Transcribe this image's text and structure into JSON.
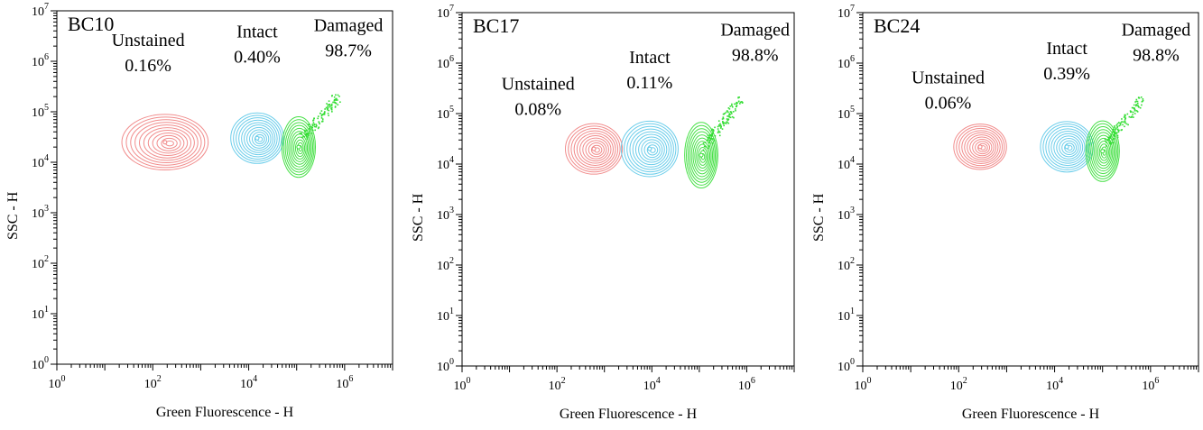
{
  "chart_data": [
    {
      "type": "scatter",
      "title": "BC10",
      "xlabel": "Green Fluorescence - H",
      "ylabel": "SSC - H",
      "xscale": "log",
      "yscale": "log",
      "xlim": [
        1,
        10000000.0
      ],
      "ylim": [
        1,
        10000000.0
      ],
      "x_ticks": [
        1,
        100,
        10000,
        1000000
      ],
      "x_tick_labels": [
        {
          "base": "10",
          "exp": "0"
        },
        {
          "base": "10",
          "exp": "2"
        },
        {
          "base": "10",
          "exp": "4"
        },
        {
          "base": "10",
          "exp": "6"
        }
      ],
      "y_ticks": [
        1,
        10,
        100,
        1000,
        10000,
        100000,
        1000000,
        10000000
      ],
      "y_tick_labels": [
        {
          "base": "10",
          "exp": "0"
        },
        {
          "base": "10",
          "exp": "1"
        },
        {
          "base": "10",
          "exp": "2"
        },
        {
          "base": "10",
          "exp": "3"
        },
        {
          "base": "10",
          "exp": "4"
        },
        {
          "base": "10",
          "exp": "5"
        },
        {
          "base": "10",
          "exp": "6"
        },
        {
          "base": "10",
          "exp": "7"
        }
      ],
      "grid": false,
      "series": [
        {
          "name": "Unstained",
          "color": "#f08080",
          "percent": "0.16%",
          "center": [
            180,
            25000
          ],
          "log_spread": [
            0.9,
            0.55
          ],
          "label_at": [
            80,
            2000000
          ]
        },
        {
          "name": "Intact",
          "color": "#5bc8e8",
          "percent": "0.40%",
          "center": [
            15000,
            30000
          ],
          "log_spread": [
            0.55,
            0.5
          ],
          "label_at": [
            15000,
            3000000
          ]
        },
        {
          "name": "Damaged",
          "color": "#33dd33",
          "percent": "98.7%",
          "center": [
            110000,
            20000
          ],
          "log_spread": [
            0.35,
            0.6
          ],
          "label_at": [
            1200000,
            4000000
          ]
        }
      ]
    },
    {
      "type": "scatter",
      "title": "BC17",
      "xlabel": "Green Fluorescence - H",
      "ylabel": "SSC - H",
      "xscale": "log",
      "yscale": "log",
      "xlim": [
        1,
        10000000.0
      ],
      "ylim": [
        1,
        10000000.0
      ],
      "x_ticks": [
        1,
        100,
        10000,
        1000000
      ],
      "x_tick_labels": [
        {
          "base": "10",
          "exp": "0"
        },
        {
          "base": "10",
          "exp": "2"
        },
        {
          "base": "10",
          "exp": "4"
        },
        {
          "base": "10",
          "exp": "6"
        }
      ],
      "y_ticks": [
        1,
        10,
        100,
        1000,
        10000,
        100000,
        1000000,
        10000000
      ],
      "y_tick_labels": [
        {
          "base": "10",
          "exp": "0"
        },
        {
          "base": "10",
          "exp": "1"
        },
        {
          "base": "10",
          "exp": "2"
        },
        {
          "base": "10",
          "exp": "3"
        },
        {
          "base": "10",
          "exp": "4"
        },
        {
          "base": "10",
          "exp": "5"
        },
        {
          "base": "10",
          "exp": "6"
        },
        {
          "base": "10",
          "exp": "7"
        }
      ],
      "grid": false,
      "series": [
        {
          "name": "Unstained",
          "color": "#f08080",
          "percent": "0.08%",
          "center": [
            600,
            20000
          ],
          "log_spread": [
            0.6,
            0.5
          ],
          "label_at": [
            40,
            300000
          ]
        },
        {
          "name": "Intact",
          "color": "#5bc8e8",
          "percent": "0.11%",
          "center": [
            9000,
            20000
          ],
          "log_spread": [
            0.6,
            0.55
          ],
          "label_at": [
            9000,
            1000000
          ]
        },
        {
          "name": "Damaged",
          "color": "#33dd33",
          "percent": "98.8%",
          "center": [
            110000,
            15000
          ],
          "log_spread": [
            0.35,
            0.65
          ],
          "label_at": [
            1500000,
            3500000
          ]
        }
      ]
    },
    {
      "type": "scatter",
      "title": "BC24",
      "xlabel": "Green Fluorescence - H",
      "ylabel": "SSC - H",
      "xscale": "log",
      "yscale": "log",
      "xlim": [
        1,
        10000000.0
      ],
      "ylim": [
        1,
        10000000.0
      ],
      "x_ticks": [
        1,
        100,
        10000,
        1000000
      ],
      "x_tick_labels": [
        {
          "base": "10",
          "exp": "0"
        },
        {
          "base": "10",
          "exp": "2"
        },
        {
          "base": "10",
          "exp": "4"
        },
        {
          "base": "10",
          "exp": "6"
        }
      ],
      "y_ticks": [
        1,
        10,
        100,
        1000,
        10000,
        100000,
        1000000,
        10000000
      ],
      "y_tick_labels": [
        {
          "base": "10",
          "exp": "0"
        },
        {
          "base": "10",
          "exp": "1"
        },
        {
          "base": "10",
          "exp": "2"
        },
        {
          "base": "10",
          "exp": "3"
        },
        {
          "base": "10",
          "exp": "4"
        },
        {
          "base": "10",
          "exp": "5"
        },
        {
          "base": "10",
          "exp": "6"
        },
        {
          "base": "10",
          "exp": "7"
        }
      ],
      "grid": false,
      "series": [
        {
          "name": "Unstained",
          "color": "#f08080",
          "percent": "0.06%",
          "center": [
            280,
            22000
          ],
          "log_spread": [
            0.55,
            0.45
          ],
          "label_at": [
            60,
            400000
          ]
        },
        {
          "name": "Intact",
          "color": "#5bc8e8",
          "percent": "0.39%",
          "center": [
            18000,
            22000
          ],
          "log_spread": [
            0.55,
            0.5
          ],
          "label_at": [
            18000,
            1500000
          ]
        },
        {
          "name": "Damaged",
          "color": "#33dd33",
          "percent": "98.8%",
          "center": [
            100000,
            18000
          ],
          "log_spread": [
            0.35,
            0.6
          ],
          "label_at": [
            1300000,
            3500000
          ]
        }
      ]
    }
  ]
}
